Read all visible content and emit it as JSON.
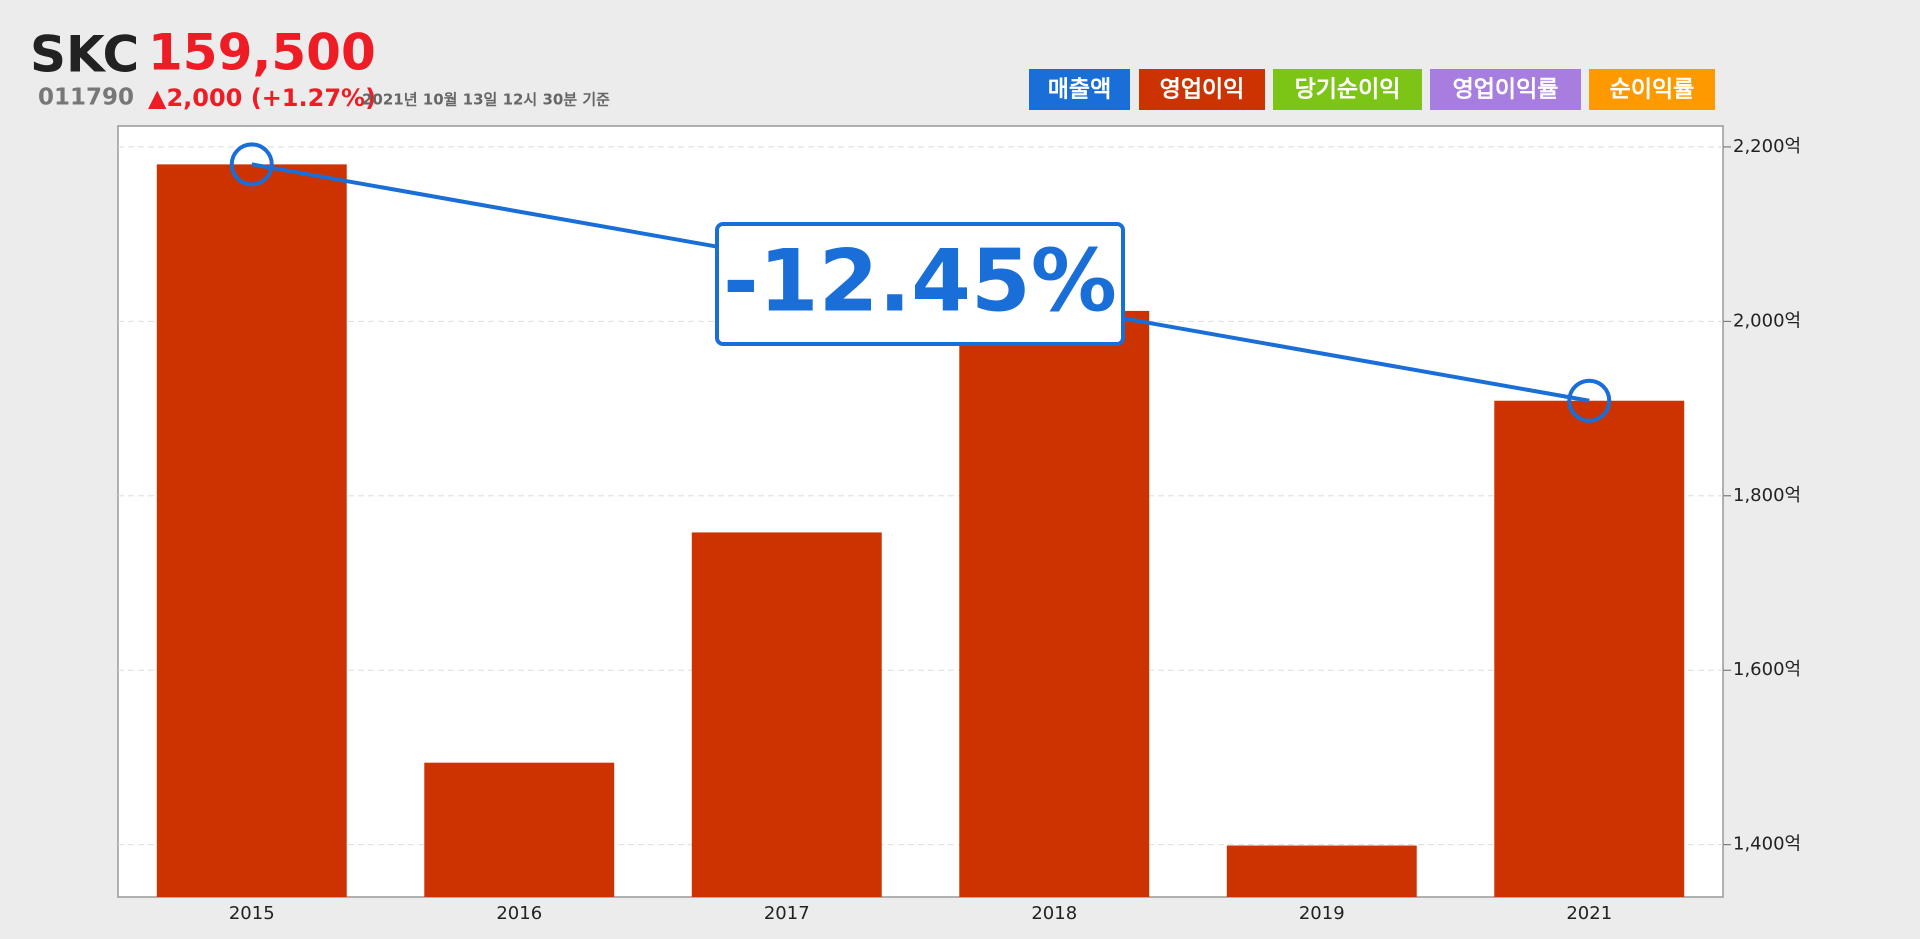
{
  "header": {
    "name": "SKC",
    "price": "159,500",
    "code": "011790",
    "change": "▲2,000 (+1.27%)",
    "timestamp": "2021년 10월 13일 12시 30분 기준"
  },
  "buttons": [
    {
      "label": "매출액",
      "color": "#1a6ed8"
    },
    {
      "label": "영업이익",
      "color": "#cc3300"
    },
    {
      "label": "당기순이익",
      "color": "#7cc416"
    },
    {
      "label": "영업이익률",
      "color": "#a87de0"
    },
    {
      "label": "순이익률",
      "color": "#ff9900"
    }
  ],
  "chart_data": {
    "type": "bar",
    "categories": [
      "2015",
      "2016",
      "2017",
      "2018",
      "2019",
      "2021"
    ],
    "series": [
      {
        "name": "영업이익",
        "color": "#cc3300",
        "values": [
          2180,
          1494,
          1758,
          2012,
          1399,
          1909
        ]
      }
    ],
    "trend": {
      "color": "#1a6ed8",
      "label": "-12.45%"
    },
    "ylim": [
      1340,
      2224
    ],
    "yticks": [
      {
        "value": 1400,
        "label": "1,400억"
      },
      {
        "value": 1600,
        "label": "1,600억"
      },
      {
        "value": 1800,
        "label": "1,800억"
      },
      {
        "value": 2000,
        "label": "2,000억"
      },
      {
        "value": 2200,
        "label": "2,200억"
      }
    ],
    "grid": true
  }
}
